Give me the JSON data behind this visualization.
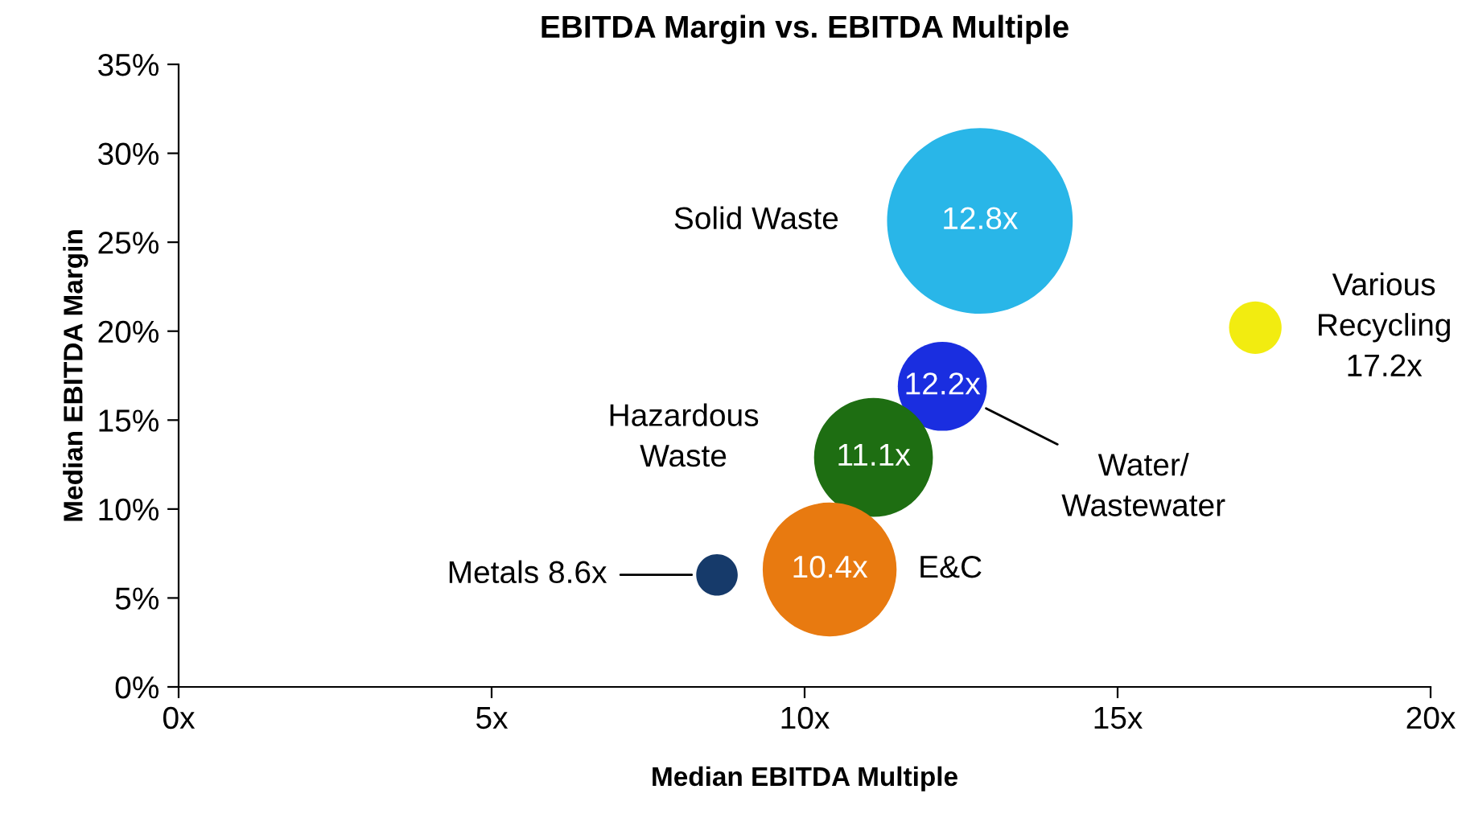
{
  "chart_data": {
    "type": "bubble",
    "title": "EBITDA Margin vs. EBITDA Multiple",
    "xlabel": "Median EBITDA Multiple",
    "ylabel": "Median EBITDA Margin",
    "series": [
      {
        "name": "Solid Waste",
        "color": "#29b6e8",
        "x": [
          12.8
        ],
        "values": [
          26.2
        ],
        "sizes": [
          1
        ]
      },
      {
        "name": "Various\nRecycling\n17.2x",
        "color": "#f2ec10",
        "x": [
          17.2
        ],
        "values": [
          20.2
        ],
        "sizes": [
          0.08
        ]
      },
      {
        "name": "Water/\nWastewater",
        "color": "#1a2ee0",
        "x": [
          12.2
        ],
        "values": [
          16.9
        ],
        "sizes": [
          0.23
        ]
      },
      {
        "name": "Hazardous\nWaste",
        "color": "#1e6e12",
        "x": [
          11.1
        ],
        "values": [
          12.9
        ],
        "sizes": [
          0.41
        ]
      },
      {
        "name": "E&C",
        "color": "#e87a10",
        "x": [
          10.4
        ],
        "values": [
          6.6
        ],
        "sizes": [
          0.52
        ]
      },
      {
        "name": "Metals 8.6x",
        "color": "#163a6a",
        "x": [
          8.6
        ],
        "values": [
          6.3
        ],
        "sizes": [
          0.05
        ]
      }
    ],
    "annotations": [
      {
        "text": "12.8x",
        "x": 12.8,
        "y": 26.2
      },
      {
        "text": "12.2x",
        "x": 12.2,
        "y": 16.9
      },
      {
        "text": "11.1x",
        "x": 11.1,
        "y": 12.9
      },
      {
        "text": "10.4x",
        "x": 10.4,
        "y": 6.6
      }
    ],
    "xlim": [
      0,
      20
    ],
    "xticks": [
      {
        "value": 0,
        "label": "0x"
      },
      {
        "value": 5,
        "label": "5x"
      },
      {
        "value": 10,
        "label": "10x"
      },
      {
        "value": 15,
        "label": "15x"
      },
      {
        "value": 20,
        "label": "20x"
      }
    ],
    "ylim": [
      0,
      35
    ],
    "yticks": [
      {
        "value": 0,
        "label": "0%"
      },
      {
        "value": 5,
        "label": "5%"
      },
      {
        "value": 10,
        "label": "10%"
      },
      {
        "value": 15,
        "label": "15%"
      },
      {
        "value": 20,
        "label": "20%"
      },
      {
        "value": 25,
        "label": "25%"
      },
      {
        "value": 30,
        "label": "30%"
      },
      {
        "value": 35,
        "label": "35%"
      }
    ],
    "grid": false,
    "legend": false
  }
}
